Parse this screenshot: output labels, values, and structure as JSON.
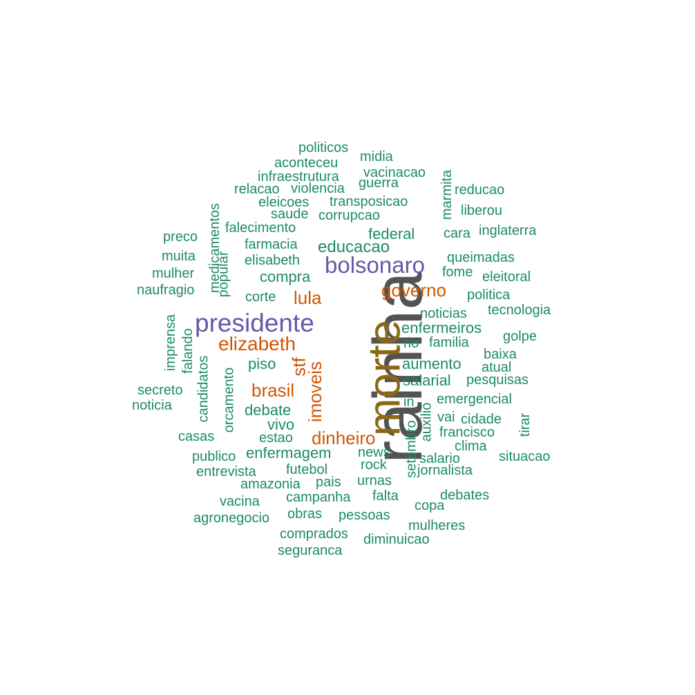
{
  "colors": {
    "tier1": "#535353",
    "tier2": "#8B6914",
    "tier3": "#6558A8",
    "tier4": "#D35400",
    "tier5": "#1B8A6B"
  },
  "words": [
    {
      "text": "rainha",
      "tier": 1
    },
    {
      "text": "morte",
      "tier": 2
    },
    {
      "text": "presidente",
      "tier": 3
    },
    {
      "text": "bolsonaro",
      "tier": 3
    },
    {
      "text": "elizabeth",
      "tier": 4
    },
    {
      "text": "governo",
      "tier": 4
    },
    {
      "text": "lula",
      "tier": 4
    },
    {
      "text": "brasil",
      "tier": 4
    },
    {
      "text": "dinheiro",
      "tier": 4
    },
    {
      "text": "stf",
      "tier": 4
    },
    {
      "text": "imoveis",
      "tier": 4
    },
    {
      "text": "politicos",
      "tier": 5
    },
    {
      "text": "midia",
      "tier": 5
    },
    {
      "text": "aconteceu",
      "tier": 5
    },
    {
      "text": "vacinacao",
      "tier": 5
    },
    {
      "text": "infraestrutura",
      "tier": 5
    },
    {
      "text": "guerra",
      "tier": 5
    },
    {
      "text": "relacao",
      "tier": 5
    },
    {
      "text": "violencia",
      "tier": 5
    },
    {
      "text": "marmita",
      "tier": 5
    },
    {
      "text": "reducao",
      "tier": 5
    },
    {
      "text": "eleicoes",
      "tier": 5
    },
    {
      "text": "transposicao",
      "tier": 5
    },
    {
      "text": "liberou",
      "tier": 5
    },
    {
      "text": "saude",
      "tier": 5
    },
    {
      "text": "corrupcao",
      "tier": 5
    },
    {
      "text": "medicamentos",
      "tier": 5
    },
    {
      "text": "falecimento",
      "tier": 5
    },
    {
      "text": "federal",
      "tier": 5
    },
    {
      "text": "cara",
      "tier": 5
    },
    {
      "text": "inglaterra",
      "tier": 5
    },
    {
      "text": "preco",
      "tier": 5
    },
    {
      "text": "farmacia",
      "tier": 5
    },
    {
      "text": "educacao",
      "tier": 5
    },
    {
      "text": "popular",
      "tier": 5
    },
    {
      "text": "muita",
      "tier": 5
    },
    {
      "text": "elisabeth",
      "tier": 5
    },
    {
      "text": "queimadas",
      "tier": 5
    },
    {
      "text": "mulher",
      "tier": 5
    },
    {
      "text": "compra",
      "tier": 5
    },
    {
      "text": "fome",
      "tier": 5
    },
    {
      "text": "eleitoral",
      "tier": 5
    },
    {
      "text": "naufragio",
      "tier": 5
    },
    {
      "text": "corte",
      "tier": 5
    },
    {
      "text": "politica",
      "tier": 5
    },
    {
      "text": "noticias",
      "tier": 5
    },
    {
      "text": "tecnologia",
      "tier": 5
    },
    {
      "text": "imprensa",
      "tier": 5
    },
    {
      "text": "falando",
      "tier": 5
    },
    {
      "text": "enfermeiros",
      "tier": 5
    },
    {
      "text": "golpe",
      "tier": 5
    },
    {
      "text": "rio",
      "tier": 5
    },
    {
      "text": "familia",
      "tier": 5
    },
    {
      "text": "candidatos",
      "tier": 5
    },
    {
      "text": "baixa",
      "tier": 5
    },
    {
      "text": "piso",
      "tier": 5
    },
    {
      "text": "aumento",
      "tier": 5
    },
    {
      "text": "atual",
      "tier": 5
    },
    {
      "text": "orcamento",
      "tier": 5
    },
    {
      "text": "salarial",
      "tier": 5
    },
    {
      "text": "pesquisas",
      "tier": 5
    },
    {
      "text": "secreto",
      "tier": 5
    },
    {
      "text": "emergencial",
      "tier": 5
    },
    {
      "text": "in",
      "tier": 5
    },
    {
      "text": "noticia",
      "tier": 5
    },
    {
      "text": "debate",
      "tier": 5
    },
    {
      "text": "vai",
      "tier": 5
    },
    {
      "text": "cidade",
      "tier": 5
    },
    {
      "text": "auxilio",
      "tier": 5
    },
    {
      "text": "tirar",
      "tier": 5
    },
    {
      "text": "vivo",
      "tier": 5
    },
    {
      "text": "setembro",
      "tier": 5
    },
    {
      "text": "francisco",
      "tier": 5
    },
    {
      "text": "casas",
      "tier": 5
    },
    {
      "text": "estao",
      "tier": 5
    },
    {
      "text": "clima",
      "tier": 5
    },
    {
      "text": "enfermagem",
      "tier": 5
    },
    {
      "text": "news",
      "tier": 5
    },
    {
      "text": "publico",
      "tier": 5
    },
    {
      "text": "salario",
      "tier": 5
    },
    {
      "text": "situacao",
      "tier": 5
    },
    {
      "text": "rock",
      "tier": 5
    },
    {
      "text": "futebol",
      "tier": 5
    },
    {
      "text": "entrevista",
      "tier": 5
    },
    {
      "text": "jornalista",
      "tier": 5
    },
    {
      "text": "urnas",
      "tier": 5
    },
    {
      "text": "amazonia",
      "tier": 5
    },
    {
      "text": "pais",
      "tier": 5
    },
    {
      "text": "debates",
      "tier": 5
    },
    {
      "text": "falta",
      "tier": 5
    },
    {
      "text": "campanha",
      "tier": 5
    },
    {
      "text": "vacina",
      "tier": 5
    },
    {
      "text": "copa",
      "tier": 5
    },
    {
      "text": "obras",
      "tier": 5
    },
    {
      "text": "pessoas",
      "tier": 5
    },
    {
      "text": "agronegocio",
      "tier": 5
    },
    {
      "text": "mulheres",
      "tier": 5
    },
    {
      "text": "comprados",
      "tier": 5
    },
    {
      "text": "diminuicao",
      "tier": 5
    },
    {
      "text": "seguranca",
      "tier": 5
    }
  ]
}
